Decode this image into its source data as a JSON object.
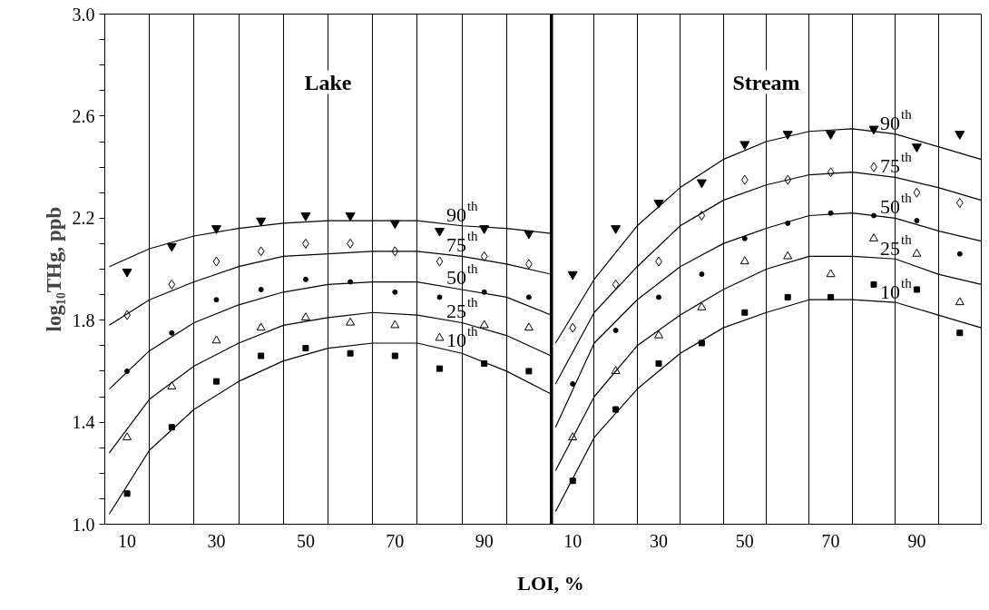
{
  "chart_data": [
    {
      "type": "scatter",
      "title": "Lake",
      "xlabel": "LOI, %",
      "ylabel": "log₁₀THg, ppb",
      "x": [
        10,
        20,
        30,
        40,
        50,
        60,
        70,
        80,
        90,
        100
      ],
      "xlim": [
        5,
        105
      ],
      "xticks": [
        {
          "value": 5,
          "label": null
        },
        10,
        {
          "value": 15,
          "label": null
        },
        {
          "value": 25,
          "label": null
        },
        30,
        {
          "value": 35,
          "label": null
        },
        {
          "value": 45,
          "label": null
        },
        50,
        {
          "value": 55,
          "label": null
        },
        {
          "value": 65,
          "label": null
        },
        70,
        {
          "value": 75,
          "label": null
        },
        {
          "value": 85,
          "label": null
        },
        90,
        {
          "value": 95,
          "label": null
        },
        {
          "value": 105,
          "label": null
        }
      ],
      "ylim": [
        1,
        3
      ],
      "yticks": [
        {
          "value": 1,
          "label": "1.0"
        },
        {
          "value": 1.1,
          "label": null
        },
        {
          "value": 1.2,
          "label": null
        },
        {
          "value": 1.3,
          "label": null
        },
        1.4,
        {
          "value": 1.5,
          "label": null
        },
        {
          "value": 1.6,
          "label": null
        },
        {
          "value": 1.7,
          "label": null
        },
        1.8,
        {
          "value": 1.9,
          "label": null
        },
        {
          "value": 2,
          "label": null
        },
        {
          "value": 2.1,
          "label": null
        },
        2.2,
        {
          "value": 2.3,
          "label": null
        },
        {
          "value": 2.4,
          "label": null
        },
        {
          "value": 2.5,
          "label": null
        },
        2.6,
        {
          "value": 2.7,
          "label": null
        },
        {
          "value": 2.8,
          "label": null
        },
        {
          "value": 2.9,
          "label": null
        },
        {
          "value": 3,
          "label": "3.0"
        }
      ],
      "grid": "x",
      "series": [
        {
          "color": "#000000",
          "values": [
            1.99,
            2.09,
            2.16,
            2.19,
            2.21,
            2.21,
            2.18,
            2.15,
            2.16,
            2.14
          ]
        },
        {
          "marker": "diamond",
          "color": "#000000",
          "values": [
            1.82,
            1.94,
            2.03,
            2.07,
            2.1,
            2.1,
            2.07,
            2.03,
            2.05,
            2.02
          ]
        },
        {
          "marker": "circle",
          "color": "#000000",
          "values": [
            1.6,
            1.75,
            1.88,
            1.92,
            1.96,
            1.95,
            1.91,
            1.89,
            1.91,
            1.89
          ]
        },
        {
          "marker": "triangle",
          "color": "#000000",
          "values": [
            1.34,
            1.54,
            1.72,
            1.77,
            1.81,
            1.79,
            1.78,
            1.73,
            1.78,
            1.77
          ]
        },
        {
          "marker": "square",
          "color": "#000000",
          "values": [
            1.12,
            1.38,
            1.56,
            1.66,
            1.69,
            1.67,
            1.66,
            1.61,
            1.63,
            1.6
          ]
        },
        {
          "type": "line",
          "color": "#000000",
          "x": [
            6,
            15,
            25,
            35,
            45,
            55,
            65,
            75,
            85,
            95,
            105
          ],
          "values": [
            2.01,
            2.08,
            2.13,
            2.16,
            2.18,
            2.19,
            2.19,
            2.19,
            2.17,
            2.16,
            2.14
          ]
        },
        {
          "type": "line",
          "color": "#000000",
          "x": [
            6,
            15,
            25,
            35,
            45,
            55,
            65,
            75,
            85,
            95,
            105
          ],
          "values": [
            1.78,
            1.88,
            1.95,
            2.01,
            2.05,
            2.06,
            2.07,
            2.07,
            2.05,
            2.02,
            1.98
          ]
        },
        {
          "type": "line",
          "color": "#000000",
          "x": [
            6,
            15,
            25,
            35,
            45,
            55,
            65,
            75,
            85,
            95,
            105
          ],
          "values": [
            1.53,
            1.68,
            1.79,
            1.86,
            1.91,
            1.94,
            1.95,
            1.95,
            1.92,
            1.89,
            1.82
          ]
        },
        {
          "type": "line",
          "color": "#000000",
          "x": [
            6,
            15,
            25,
            35,
            45,
            55,
            65,
            75,
            85,
            95,
            105
          ],
          "values": [
            1.28,
            1.49,
            1.62,
            1.71,
            1.78,
            1.81,
            1.83,
            1.82,
            1.79,
            1.74,
            1.66
          ]
        },
        {
          "type": "line",
          "color": "#000000",
          "x": [
            6,
            15,
            25,
            35,
            45,
            55,
            65,
            75,
            85,
            95,
            105
          ],
          "values": [
            1.04,
            1.29,
            1.45,
            1.56,
            1.64,
            1.69,
            1.71,
            1.71,
            1.67,
            1.6,
            1.51
          ]
        }
      ],
      "annotations": [
        "90$^{th}$",
        "75$^{th}$",
        "50$^{th}$",
        "25$^{th}$",
        "10$^{th}$"
      ]
    },
    {
      "type": "scatter",
      "title": "Stream",
      "x": [
        10,
        20,
        30,
        40,
        50,
        60,
        70,
        80,
        90,
        100
      ],
      "xlim": [
        5,
        105
      ],
      "xticks": [
        {
          "value": 5,
          "label": null
        },
        10,
        {
          "value": 15,
          "label": null
        },
        {
          "value": 25,
          "label": null
        },
        30,
        {
          "value": 35,
          "label": null
        },
        {
          "value": 45,
          "label": null
        },
        50,
        {
          "value": 55,
          "label": null
        },
        {
          "value": 65,
          "label": null
        },
        70,
        {
          "value": 75,
          "label": null
        },
        {
          "value": 85,
          "label": null
        },
        90,
        {
          "value": 95,
          "label": null
        }
      ],
      "ylim": [
        1,
        3
      ],
      "tick_labels": "x",
      "grid": "x",
      "series": [
        {
          "color": "#000000",
          "values": [
            1.98,
            2.16,
            2.26,
            2.34,
            2.49,
            2.53,
            2.53,
            2.55,
            2.48,
            2.53
          ]
        },
        {
          "marker": "diamond",
          "color": "#000000",
          "values": [
            1.77,
            1.94,
            2.03,
            2.21,
            2.35,
            2.35,
            2.38,
            2.4,
            2.3,
            2.26
          ]
        },
        {
          "marker": "circle",
          "color": "#000000",
          "values": [
            1.55,
            1.76,
            1.89,
            1.98,
            2.12,
            2.18,
            2.22,
            2.21,
            2.19,
            2.06
          ]
        },
        {
          "marker": "triangle",
          "color": "#000000",
          "values": [
            1.34,
            1.6,
            1.74,
            1.85,
            2.03,
            2.05,
            1.98,
            2.12,
            2.06,
            1.87
          ]
        },
        {
          "marker": "square",
          "color": "#000000",
          "values": [
            1.17,
            1.45,
            1.63,
            1.71,
            1.83,
            1.89,
            1.89,
            1.94,
            1.92,
            1.75
          ]
        },
        {
          "type": "line",
          "color": "#000000",
          "x": [
            6,
            15,
            25,
            35,
            45,
            55,
            65,
            75,
            85,
            95,
            105
          ],
          "values": [
            1.71,
            1.96,
            2.17,
            2.32,
            2.43,
            2.5,
            2.54,
            2.55,
            2.53,
            2.48,
            2.43
          ]
        },
        {
          "type": "line",
          "color": "#000000",
          "x": [
            6,
            15,
            25,
            35,
            45,
            55,
            65,
            75,
            85,
            95,
            105
          ],
          "values": [
            1.55,
            1.83,
            2.01,
            2.17,
            2.27,
            2.33,
            2.37,
            2.38,
            2.36,
            2.32,
            2.27
          ]
        },
        {
          "type": "line",
          "color": "#000000",
          "x": [
            6,
            15,
            25,
            35,
            45,
            55,
            65,
            75,
            85,
            95,
            105
          ],
          "values": [
            1.38,
            1.71,
            1.88,
            2.01,
            2.1,
            2.16,
            2.21,
            2.22,
            2.2,
            2.15,
            2.11
          ]
        },
        {
          "type": "line",
          "color": "#000000",
          "x": [
            6,
            15,
            25,
            35,
            45,
            55,
            65,
            75,
            85,
            95,
            105
          ],
          "values": [
            1.21,
            1.5,
            1.7,
            1.82,
            1.92,
            2.0,
            2.05,
            2.05,
            2.04,
            1.98,
            1.94
          ]
        },
        {
          "type": "line",
          "color": "#000000",
          "x": [
            6,
            15,
            25,
            35,
            45,
            55,
            65,
            75,
            85,
            95,
            105
          ],
          "values": [
            1.05,
            1.34,
            1.53,
            1.67,
            1.77,
            1.83,
            1.88,
            1.88,
            1.87,
            1.82,
            1.77
          ]
        }
      ],
      "annotations": [
        "90$^{th}$",
        "75$^{th}$",
        "50$^{th}$",
        "25$^{th}$",
        "10$^{th}$"
      ]
    }
  ]
}
